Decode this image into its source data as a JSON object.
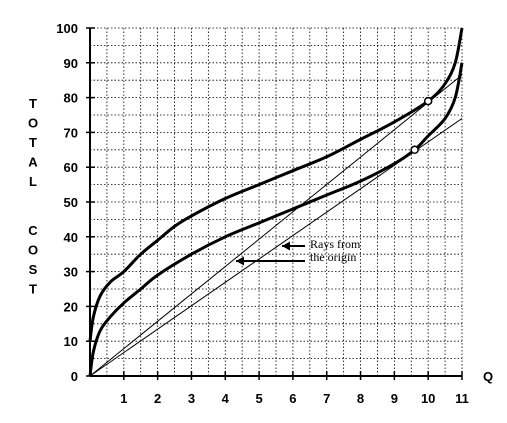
{
  "chart_data": {
    "type": "line",
    "title": "",
    "xlabel": "Q",
    "ylabel": "TOTAL COST",
    "xlim": [
      0,
      11
    ],
    "ylim": [
      0,
      100
    ],
    "x_ticks": [
      1,
      2,
      3,
      4,
      5,
      6,
      7,
      8,
      9,
      10,
      11
    ],
    "y_ticks": [
      0,
      10,
      20,
      30,
      40,
      50,
      60,
      70,
      80,
      90,
      100
    ],
    "grid": true,
    "series": [
      {
        "name": "",
        "style": "thick",
        "x": [
          0,
          0.1,
          0.3,
          0.6,
          1,
          1.5,
          2,
          2.5,
          3,
          4,
          5,
          6,
          7,
          8,
          9,
          10,
          10.5,
          10.8,
          11
        ],
        "y": [
          10,
          17,
          23,
          27,
          30,
          35,
          39,
          43,
          46,
          51,
          55,
          59,
          63,
          68,
          73,
          79,
          84,
          90,
          100
        ]
      },
      {
        "name": "",
        "style": "thick",
        "x": [
          0,
          0.1,
          0.3,
          0.6,
          1,
          1.5,
          2,
          3,
          4,
          5,
          6,
          7,
          8,
          9,
          9.6,
          10,
          10.5,
          10.8,
          11
        ],
        "y": [
          0,
          7,
          13,
          17,
          21,
          25,
          29,
          35,
          40,
          44,
          48,
          52,
          56,
          61,
          65,
          69,
          74,
          80,
          90
        ]
      },
      {
        "name": "ray-1",
        "style": "thin",
        "x": [
          0,
          11
        ],
        "y": [
          0,
          86.5
        ]
      },
      {
        "name": "ray-2",
        "style": "thin",
        "x": [
          0,
          11
        ],
        "y": [
          0,
          74
        ]
      }
    ],
    "markers": [
      {
        "x": 10,
        "y": 79
      },
      {
        "x": 9.6,
        "y": 65
      }
    ],
    "annotations": [
      {
        "lines": [
          "Rays from",
          "the origin"
        ]
      }
    ]
  }
}
